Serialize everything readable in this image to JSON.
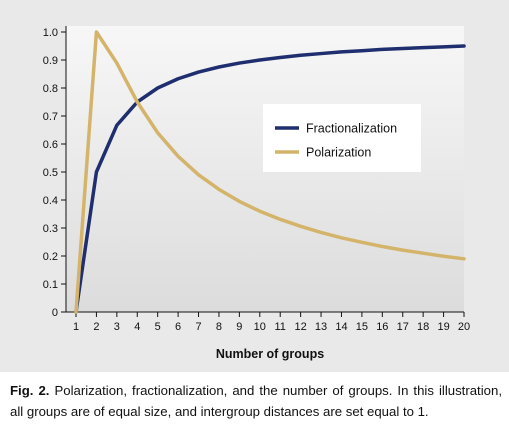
{
  "chart_data": {
    "type": "line",
    "x": [
      1,
      2,
      3,
      4,
      5,
      6,
      7,
      8,
      9,
      10,
      11,
      12,
      13,
      14,
      15,
      16,
      17,
      18,
      19,
      20
    ],
    "series": [
      {
        "name": "Fractionalization",
        "color": "#1f2e6e",
        "values": [
          0,
          0.5,
          0.667,
          0.75,
          0.8,
          0.833,
          0.857,
          0.875,
          0.889,
          0.9,
          0.909,
          0.917,
          0.923,
          0.929,
          0.933,
          0.938,
          0.941,
          0.944,
          0.947,
          0.95
        ]
      },
      {
        "name": "Polarization",
        "color": "#d4b46a",
        "values": [
          0,
          1.0,
          0.889,
          0.75,
          0.64,
          0.556,
          0.49,
          0.438,
          0.395,
          0.36,
          0.331,
          0.306,
          0.284,
          0.265,
          0.249,
          0.234,
          0.221,
          0.21,
          0.199,
          0.19
        ]
      }
    ],
    "xlabel": "Number of groups",
    "ylabel": "",
    "xticks": [
      "1",
      "2",
      "3",
      "4",
      "5",
      "6",
      "7",
      "8",
      "9",
      "10",
      "11",
      "12",
      "13",
      "14",
      "15",
      "16",
      "17",
      "18",
      "19",
      "20"
    ],
    "yticks": [
      "0",
      "0.1",
      "0.2",
      "0.3",
      "0.4",
      "0.5",
      "0.6",
      "0.7",
      "0.8",
      "0.9",
      "1.0"
    ],
    "xlim": [
      1,
      20
    ],
    "ylim": [
      0,
      1.0
    ],
    "grid": false,
    "legend": "center-right"
  },
  "caption": {
    "label": "Fig. 2.",
    "text": "Polarization, fractionalization, and the number of groups. In this illustration, all groups are of equal size, and intergroup distances are set equal to 1."
  }
}
